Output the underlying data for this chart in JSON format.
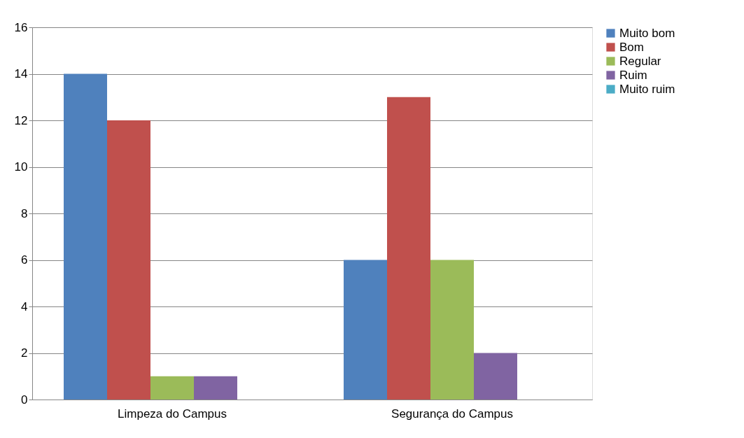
{
  "chart_data": {
    "type": "bar",
    "categories": [
      "Limpeza do Campus",
      "Segurança do Campus"
    ],
    "series": [
      {
        "name": "Muito bom",
        "color": "#4f81bd",
        "values": [
          14,
          6
        ]
      },
      {
        "name": "Bom",
        "color": "#c0504d",
        "values": [
          12,
          13
        ]
      },
      {
        "name": "Regular",
        "color": "#9bbb59",
        "values": [
          1,
          6
        ]
      },
      {
        "name": "Ruim",
        "color": "#8064a2",
        "values": [
          1,
          2
        ]
      },
      {
        "name": "Muito ruim",
        "color": "#4bacc6",
        "values": [
          0,
          0
        ]
      }
    ],
    "ylim": [
      0,
      16
    ],
    "yticks": [
      0,
      2,
      4,
      6,
      8,
      10,
      12,
      14,
      16
    ],
    "grid": "y",
    "legend": "right"
  }
}
